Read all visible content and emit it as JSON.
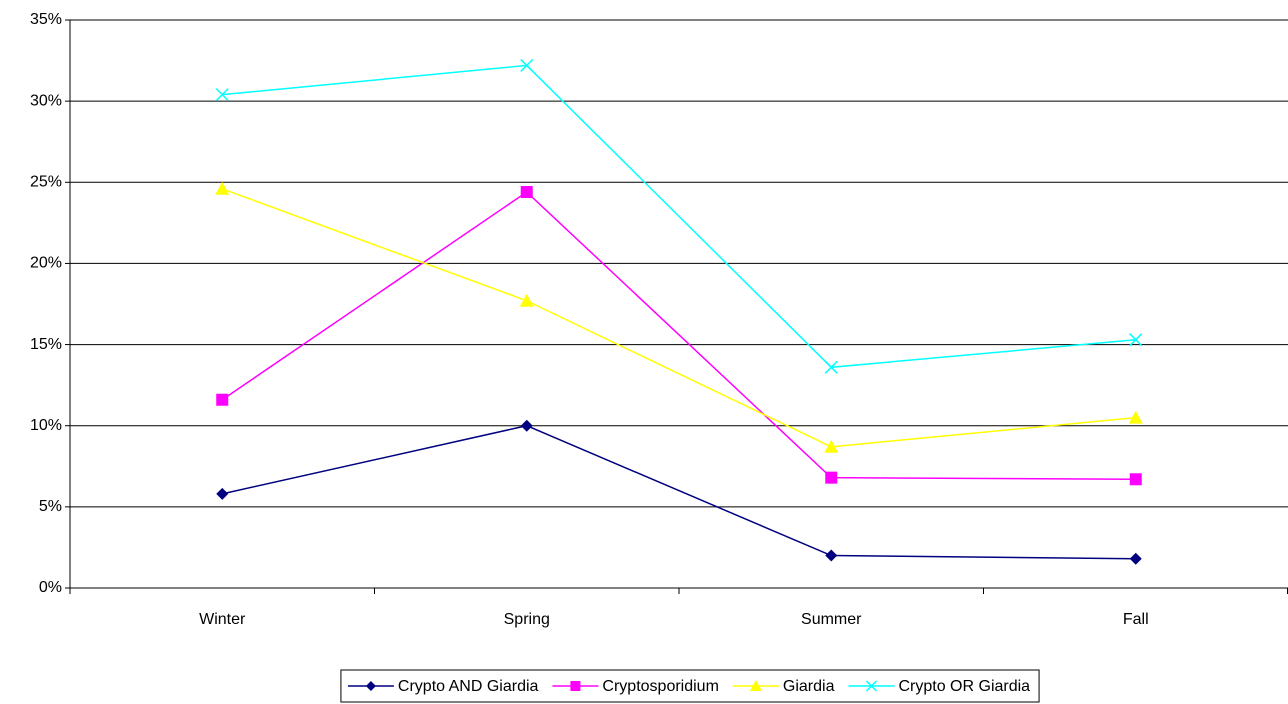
{
  "chart_data": {
    "type": "line",
    "categories": [
      "Winter",
      "Spring",
      "Summer",
      "Fall"
    ],
    "series": [
      {
        "name": "Crypto AND Giardia",
        "color": "#000080",
        "marker": "diamond",
        "values": [
          5.8,
          10.0,
          2.0,
          1.8
        ]
      },
      {
        "name": "Cryptosporidium",
        "color": "#ff00ff",
        "marker": "square",
        "values": [
          11.6,
          24.4,
          6.8,
          6.7
        ]
      },
      {
        "name": "Giardia",
        "color": "#ffff00",
        "marker": "triangle",
        "values": [
          24.6,
          17.7,
          8.7,
          10.5
        ]
      },
      {
        "name": "Crypto OR Giardia",
        "color": "#00ffff",
        "marker": "x",
        "values": [
          30.4,
          32.2,
          13.6,
          15.3
        ]
      }
    ],
    "ylim": [
      0,
      35
    ],
    "yticks": [
      {
        "value": 0,
        "label": "0%"
      },
      {
        "value": 5,
        "label": "5%"
      },
      {
        "value": 10,
        "label": "10%"
      },
      {
        "value": 15,
        "label": "15%"
      },
      {
        "value": 20,
        "label": "20%"
      },
      {
        "value": 25,
        "label": "25%"
      },
      {
        "value": 30,
        "label": "30%"
      },
      {
        "value": 35,
        "label": "35%"
      }
    ],
    "grid": true,
    "legend": "bottom"
  }
}
